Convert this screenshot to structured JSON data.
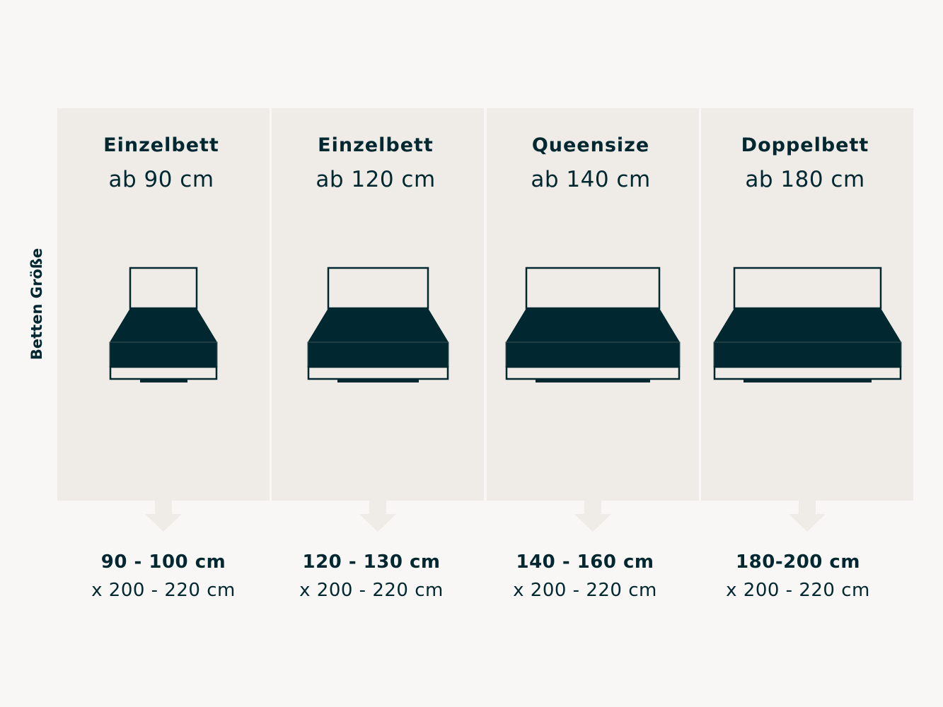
{
  "axis_label": "Betten Größe",
  "colors": {
    "background": "#f8f7f5",
    "panel": "#efebe6",
    "ink": "#012830"
  },
  "beds": [
    {
      "title": "Einzelbett",
      "size": "ab 90 cm",
      "dimension": "90 - 100 cm",
      "length": "x 200 - 220 cm"
    },
    {
      "title": "Einzelbett",
      "size": "ab 120 cm",
      "dimension": "120 - 130 cm",
      "length": "x 200 - 220 cm"
    },
    {
      "title": "Queensize",
      "size": "ab 140 cm",
      "dimension": "140 - 160 cm",
      "length": "x 200 - 220 cm"
    },
    {
      "title": "Doppelbett",
      "size": "ab 180 cm",
      "dimension": "180-200 cm",
      "length": "x 200 - 220 cm"
    }
  ]
}
